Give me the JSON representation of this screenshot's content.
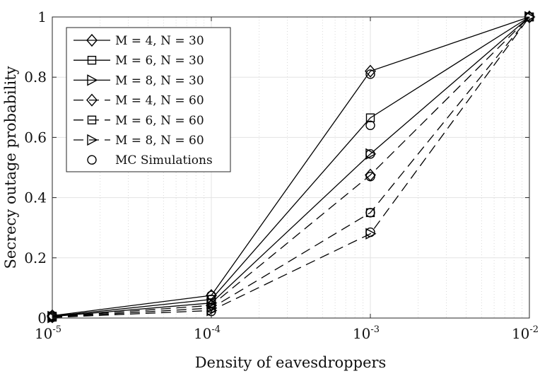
{
  "chart_data": {
    "type": "line",
    "xscale": "log",
    "x": [
      1e-05,
      0.0001,
      0.001,
      0.01
    ],
    "xlim": [
      1e-05,
      0.01
    ],
    "ylim": [
      0,
      1
    ],
    "xticks": [
      {
        "base": "10",
        "exp": "-5"
      },
      {
        "base": "10",
        "exp": "-4"
      },
      {
        "base": "10",
        "exp": "-3"
      },
      {
        "base": "10",
        "exp": "-2"
      }
    ],
    "yticks": [
      "0",
      "0.2",
      "0.4",
      "0.6",
      "0.8",
      "1"
    ],
    "yticks_values": [
      0,
      0.2,
      0.4,
      0.6,
      0.8,
      1
    ],
    "xlabel": "Density of eavesdroppers",
    "ylabel": "Secrecy outage probability",
    "grid": true,
    "legend_position": "top-left",
    "series": [
      {
        "name": "M = 4, N = 30",
        "marker": "diamond",
        "line": "solid",
        "values": [
          0.008,
          0.075,
          0.82,
          1.0
        ]
      },
      {
        "name": "M = 6, N = 30",
        "marker": "square",
        "line": "solid",
        "values": [
          0.006,
          0.062,
          0.665,
          1.0
        ]
      },
      {
        "name": "M = 8, N = 30",
        "marker": "triangle-right",
        "line": "solid",
        "values": [
          0.005,
          0.05,
          0.545,
          1.0
        ]
      },
      {
        "name": "M = 4, N = 60",
        "marker": "diamond",
        "line": "dashed",
        "values": [
          0.004,
          0.042,
          0.475,
          1.0
        ]
      },
      {
        "name": "M = 6, N = 60",
        "marker": "square",
        "line": "dashed",
        "values": [
          0.003,
          0.033,
          0.35,
          1.0
        ]
      },
      {
        "name": "M = 8, N = 60",
        "marker": "triangle-right",
        "line": "dashed",
        "values": [
          0.002,
          0.025,
          0.28,
          1.0
        ]
      }
    ],
    "simulation": {
      "name": "MC Simulations",
      "marker": "circle",
      "points": [
        {
          "x": 1e-05,
          "y": 0.008
        },
        {
          "x": 0.0001,
          "y": 0.075
        },
        {
          "x": 0.001,
          "y": 0.81
        },
        {
          "x": 0.01,
          "y": 1.0
        },
        {
          "x": 1e-05,
          "y": 0.006
        },
        {
          "x": 0.0001,
          "y": 0.062
        },
        {
          "x": 0.001,
          "y": 0.64
        },
        {
          "x": 0.01,
          "y": 1.0
        },
        {
          "x": 1e-05,
          "y": 0.005
        },
        {
          "x": 0.0001,
          "y": 0.05
        },
        {
          "x": 0.001,
          "y": 0.545
        },
        {
          "x": 0.01,
          "y": 1.0
        },
        {
          "x": 1e-05,
          "y": 0.004
        },
        {
          "x": 0.0001,
          "y": 0.042
        },
        {
          "x": 0.001,
          "y": 0.47
        },
        {
          "x": 0.01,
          "y": 1.0
        },
        {
          "x": 1e-05,
          "y": 0.003
        },
        {
          "x": 0.0001,
          "y": 0.033
        },
        {
          "x": 0.001,
          "y": 0.35
        },
        {
          "x": 0.01,
          "y": 1.0
        },
        {
          "x": 1e-05,
          "y": 0.002
        },
        {
          "x": 0.0001,
          "y": 0.022
        },
        {
          "x": 0.001,
          "y": 0.285
        },
        {
          "x": 0.01,
          "y": 1.0
        }
      ]
    },
    "colors": {
      "line": "#000000",
      "grid": "#e3e3e3",
      "minor_grid": "#c8c8c8",
      "background": "#ffffff"
    }
  }
}
